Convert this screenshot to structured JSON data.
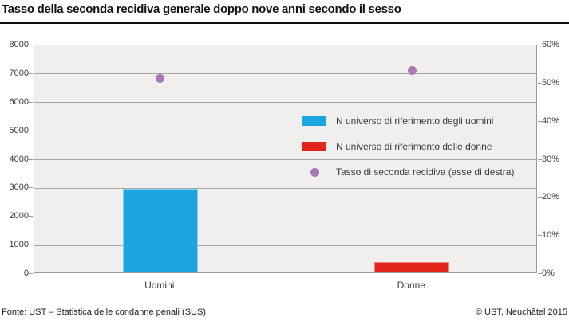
{
  "header": {
    "title": "Tasso della seconda recidiva generale doppo nove anni secondo il sesso"
  },
  "footer": {
    "source": "Fonte: UST – Statistica delle condanne penali (SUS)",
    "copyright": "© UST, Neuchâtel 2015"
  },
  "chart_data": {
    "type": "bar",
    "categories": [
      "Uomini",
      "Donne"
    ],
    "series": [
      {
        "name": "N universo di riferimento degli uomini",
        "type": "bar",
        "axis": "left",
        "color": "#1ba6e0",
        "values": [
          2940,
          null
        ]
      },
      {
        "name": "N universo di riferimento delle donne",
        "type": "bar",
        "axis": "left",
        "color": "#e2251a",
        "values": [
          null,
          350
        ]
      },
      {
        "name": "Tasso di seconda recidiva (asse di destra)",
        "type": "scatter",
        "axis": "right",
        "color": "#a878b5",
        "unit": "%",
        "values": [
          51,
          53
        ]
      }
    ],
    "left_axis": {
      "min": 0,
      "max": 8000,
      "step": 1000,
      "tick_labels": [
        "0",
        "1000",
        "2000",
        "3000",
        "4000",
        "5000",
        "6000",
        "7000",
        "8000"
      ]
    },
    "right_axis": {
      "min": 0,
      "max": 60,
      "step": 10,
      "tick_labels": [
        "0%",
        "10%",
        "20%",
        "30%",
        "40%",
        "50%",
        "60%"
      ]
    },
    "grid": true,
    "legend_position": "inside-right",
    "plot_background": "#f0efee",
    "gridline_color": "#a6a6a6"
  }
}
